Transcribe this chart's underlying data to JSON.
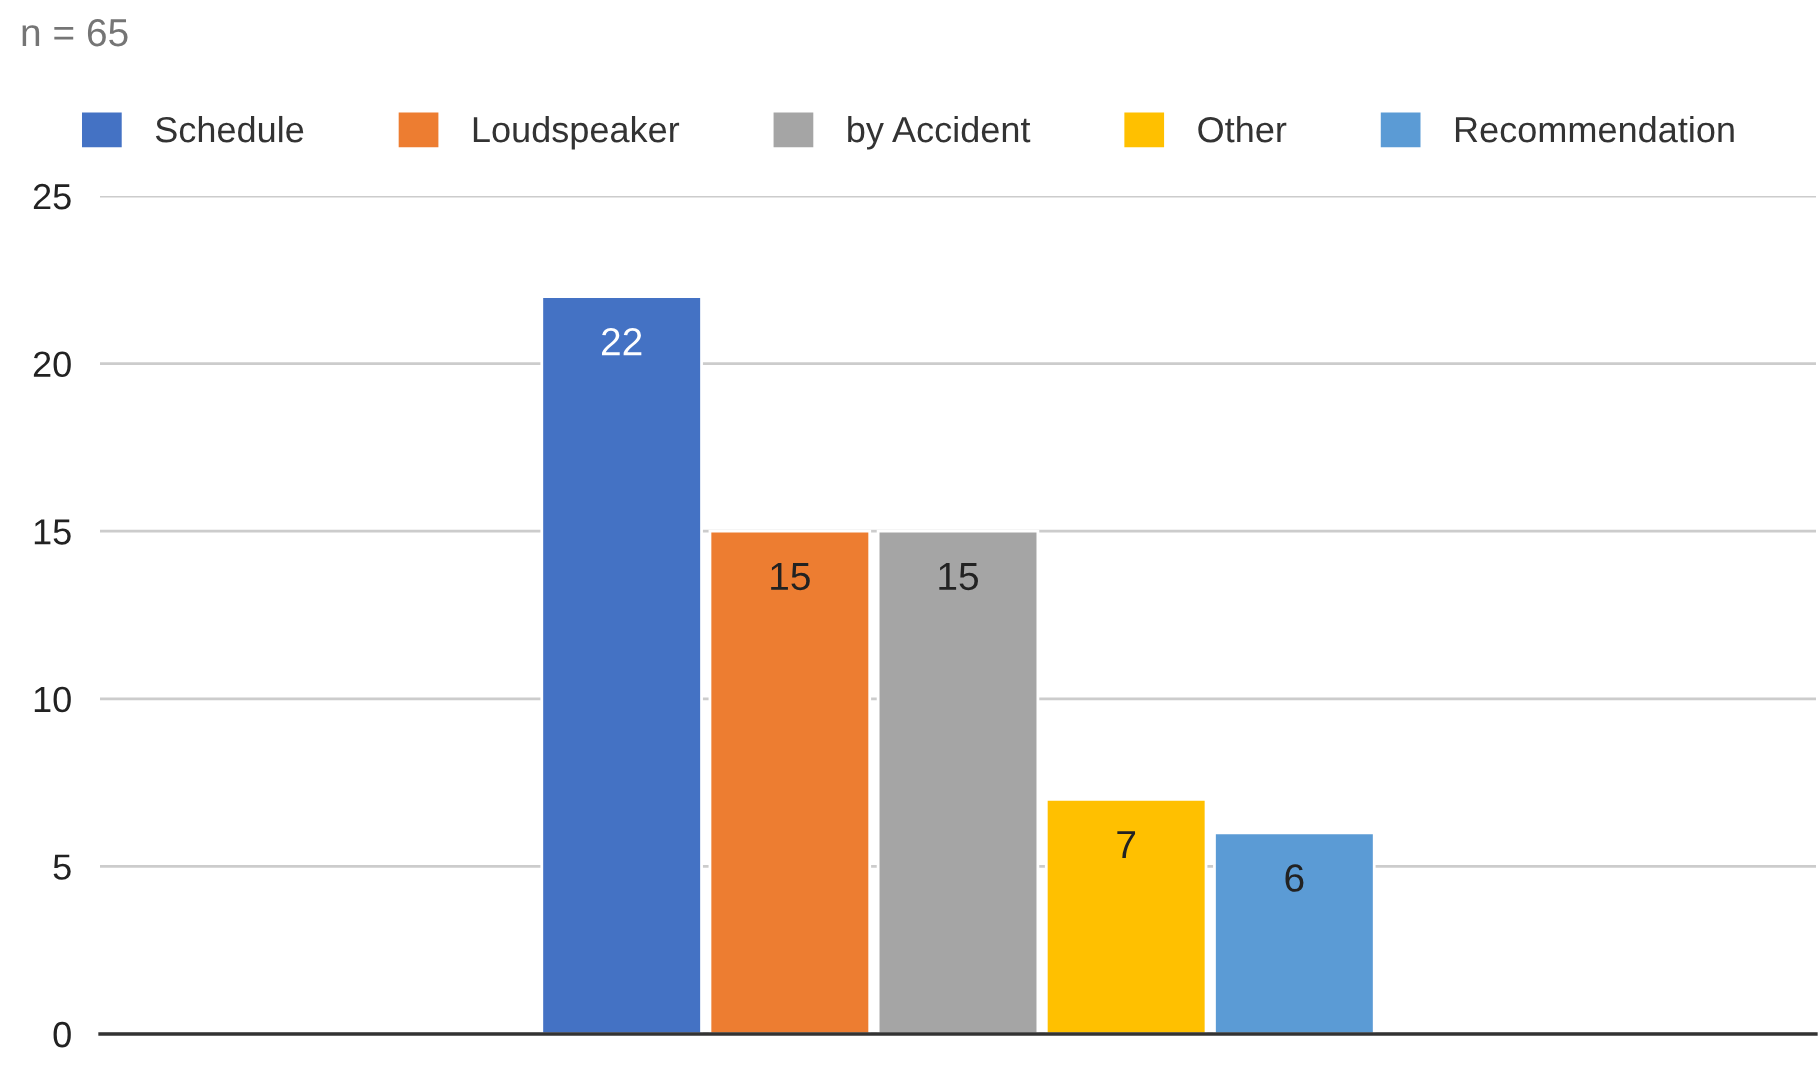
{
  "chart_data": {
    "type": "bar",
    "title": "n = 65",
    "categories": [
      null
    ],
    "series": [
      {
        "name": "Schedule",
        "color": "#4472c4",
        "values": [
          22
        ]
      },
      {
        "name": "Loudspeaker",
        "color": "#ed7d31",
        "values": [
          15
        ]
      },
      {
        "name": "by Accident",
        "color": "#a5a5a5",
        "values": [
          15
        ]
      },
      {
        "name": "Other",
        "color": "#ffc000",
        "values": [
          7
        ]
      },
      {
        "name": "Recommendation",
        "color": "#5b9bd5",
        "values": [
          6
        ]
      }
    ],
    "ylim": [
      0,
      25
    ],
    "yticks": [
      0,
      5,
      10,
      15,
      20,
      25
    ],
    "grid": "y",
    "legend": "top",
    "data_labels": true
  }
}
